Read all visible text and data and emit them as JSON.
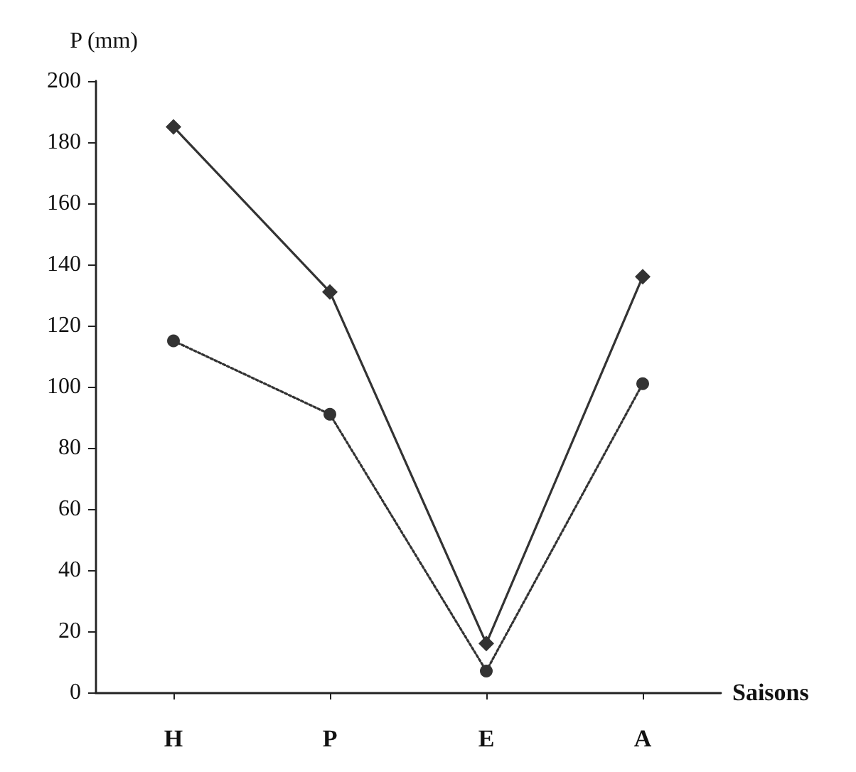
{
  "chart_data": {
    "type": "line",
    "xlabel": "Saisons",
    "ylabel": "P (mm)",
    "categories": [
      "H",
      "P",
      "E",
      "A"
    ],
    "series": [
      {
        "color": "#333333",
        "marker": "diamond",
        "line_style": "solid",
        "values": [
          185,
          131,
          16,
          136
        ]
      },
      {
        "color": "#333333",
        "marker": "circle",
        "line_style": "dotted",
        "values": [
          115,
          91,
          7,
          101
        ]
      }
    ],
    "ylim": [
      0,
      200
    ],
    "yticks": [
      0,
      20,
      40,
      60,
      80,
      100,
      120,
      140,
      160,
      180,
      200
    ],
    "grid": false
  }
}
